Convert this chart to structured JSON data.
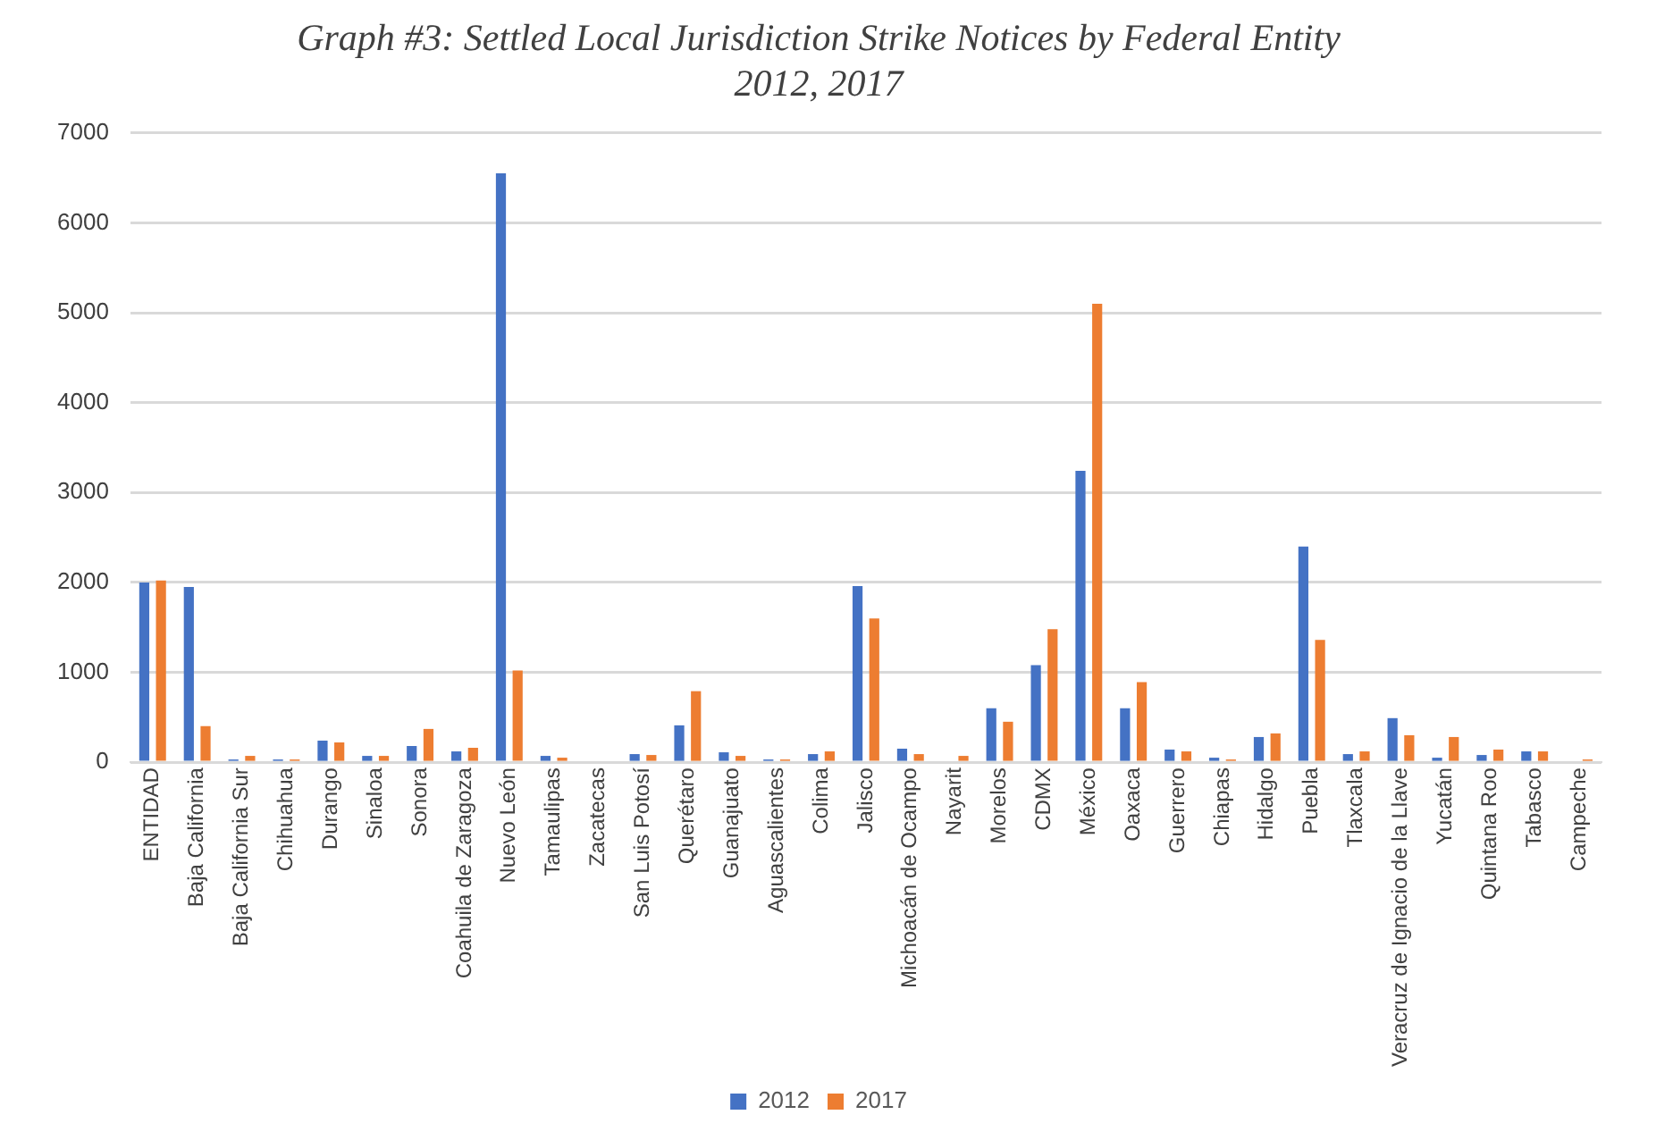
{
  "chart_data": {
    "type": "bar",
    "title": "Graph #3: Settled Local Jurisdiction Strike Notices by Federal Entity\n2012, 2017",
    "categories": [
      "ENTIDAD",
      "Baja California",
      "Baja California Sur",
      "Chihuahua",
      "Durango",
      "Sinaloa",
      "Sonora",
      "Coahuila de Zaragoza",
      "Nuevo León",
      "Tamaulipas",
      "Zacatecas",
      "San Luis Potosí",
      "Querétaro",
      "Guanajuato",
      "Aguascalientes",
      "Colima",
      "Jalisco",
      "Michoacán de Ocampo",
      "Nayarit",
      "Morelos",
      "CDMX",
      "México",
      "Oaxaca",
      "Guerrero",
      "Chiapas",
      "Hidalgo",
      "Puebla",
      "Tlaxcala",
      "Veracruz de Ignacio de la Llave",
      "Yucatán",
      "Quintana Roo",
      "Tabasco",
      "Campeche"
    ],
    "series": [
      {
        "name": "2012",
        "color": "#4472c4",
        "values": [
          2000,
          1950,
          30,
          30,
          240,
          70,
          180,
          120,
          6550,
          70,
          0,
          90,
          410,
          110,
          30,
          90,
          1960,
          150,
          0,
          600,
          1080,
          3240,
          600,
          140,
          50,
          280,
          2400,
          90,
          490,
          50,
          80,
          120,
          0
        ]
      },
      {
        "name": "2017",
        "color": "#ed7d31",
        "values": [
          2020,
          400,
          70,
          30,
          220,
          70,
          370,
          160,
          1020,
          50,
          0,
          80,
          790,
          70,
          30,
          120,
          1600,
          90,
          70,
          450,
          1480,
          5100,
          890,
          120,
          30,
          320,
          1360,
          120,
          300,
          280,
          140,
          120,
          30
        ]
      }
    ],
    "ylim": [
      0,
      7000
    ],
    "yticks": [
      0,
      1000,
      2000,
      3000,
      4000,
      5000,
      6000,
      7000
    ],
    "grid": "y",
    "legend": "bottom"
  }
}
